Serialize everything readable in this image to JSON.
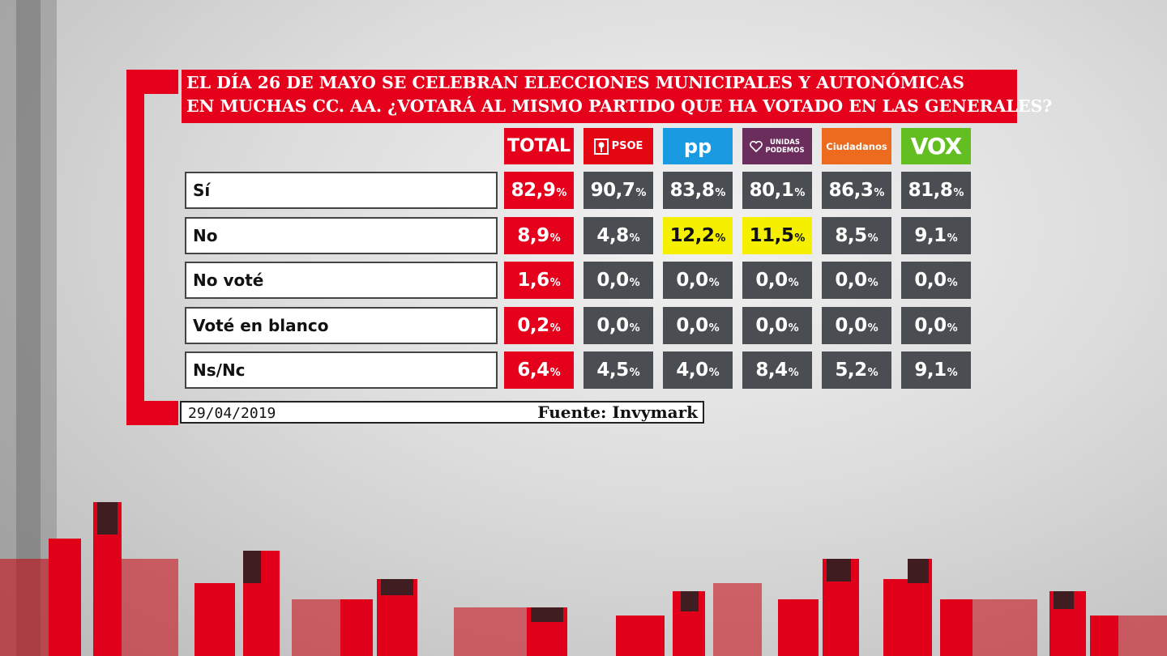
{
  "title": {
    "line1": "EL DÍA 26 DE MAYO SE CELEBRAN ELECCIONES MUNICIPALES Y AUTONÓMICAS",
    "line2": "EN MUCHAS CC. AA. ¿VOTARÁ AL MISMO PARTIDO QUE HA VOTADO EN LAS GENERALES?"
  },
  "columns": {
    "total": "TOTAL",
    "psoe": "PSOE",
    "pp": "pp",
    "up_line1": "UNIDAS",
    "up_line2": "PODEMOS",
    "cs": "Ciudadanos",
    "vox": "VOX"
  },
  "colors": {
    "accent_red": "#e5001c",
    "highlight_yellow": "#f4f000",
    "cell_gray": "#4a4d52"
  },
  "chart_data": {
    "type": "table",
    "columns": [
      "TOTAL",
      "PSOE",
      "PP",
      "UNIDAS PODEMOS",
      "Ciudadanos",
      "VOX"
    ],
    "unit": "%",
    "rows": [
      {
        "label": "Sí",
        "values": [
          "82,9",
          "90,7",
          "83,8",
          "80,1",
          "86,3",
          "81,8"
        ],
        "highlight": [
          false,
          false,
          false,
          false,
          false,
          false
        ]
      },
      {
        "label": "No",
        "values": [
          "8,9",
          "4,8",
          "12,2",
          "11,5",
          "8,5",
          "9,1"
        ],
        "highlight": [
          false,
          false,
          true,
          true,
          false,
          false
        ]
      },
      {
        "label": "No voté",
        "values": [
          "1,6",
          "0,0",
          "0,0",
          "0,0",
          "0,0",
          "0,0"
        ],
        "highlight": [
          false,
          false,
          false,
          false,
          false,
          false
        ]
      },
      {
        "label": "Voté en blanco",
        "values": [
          "0,2",
          "0,0",
          "0,0",
          "0,0",
          "0,0",
          "0,0"
        ],
        "highlight": [
          false,
          false,
          false,
          false,
          false,
          false
        ]
      },
      {
        "label": "Ns/Nc",
        "values": [
          "6,4",
          "4,5",
          "4,0",
          "8,4",
          "5,2",
          "9,1"
        ],
        "highlight": [
          false,
          false,
          false,
          false,
          false,
          false
        ]
      }
    ]
  },
  "footer": {
    "date": "29/04/2019",
    "source": "Fuente: Invymark"
  }
}
